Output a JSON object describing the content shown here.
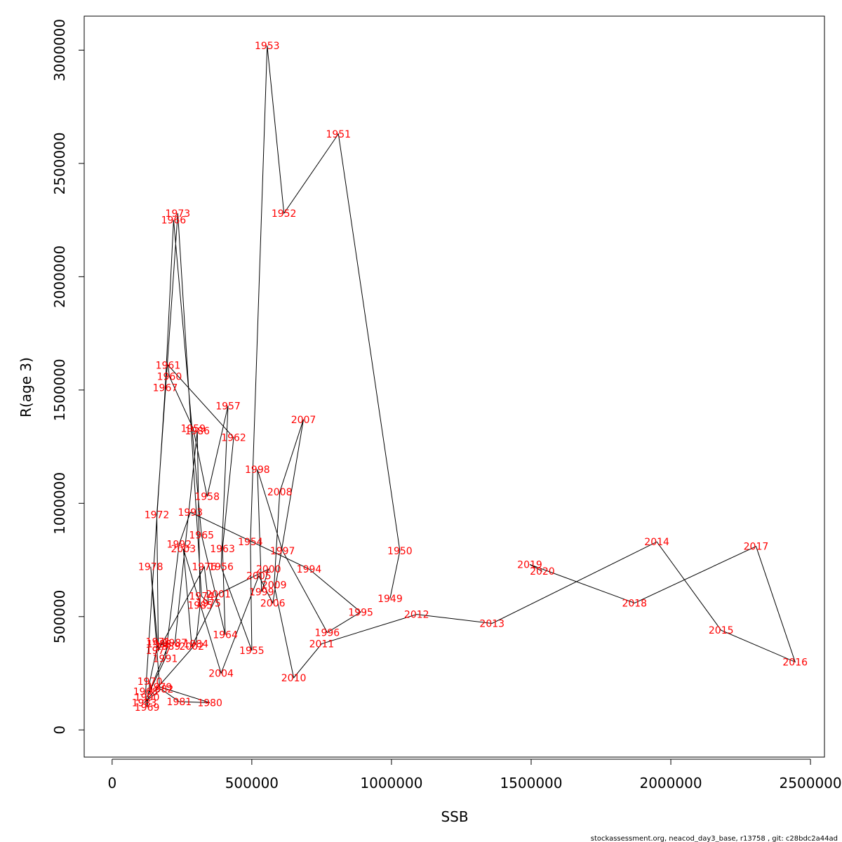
{
  "chart_data": {
    "type": "line",
    "title": "",
    "xlabel": "SSB",
    "ylabel": "R(age 3)",
    "xlim": [
      -100000,
      2550000
    ],
    "ylim": [
      -120000,
      3150000
    ],
    "x_ticks": [
      0,
      500000,
      1000000,
      1500000,
      2000000,
      2500000
    ],
    "x_tick_labels": [
      "0",
      "500000",
      "1000000",
      "1500000",
      "2000000",
      "2500000"
    ],
    "y_ticks": [
      0,
      500000,
      1000000,
      1500000,
      2000000,
      2500000,
      3000000
    ],
    "y_tick_labels": [
      "0",
      "500000",
      "1000000",
      "1500000",
      "2000000",
      "2500000",
      "3000000"
    ],
    "grid": false,
    "line_color": "#000000",
    "label_color": "#ff0000",
    "points": [
      {
        "year": "1949",
        "x": 995000,
        "y": 580000
      },
      {
        "year": "1950",
        "x": 1030000,
        "y": 790000
      },
      {
        "year": "1951",
        "x": 810000,
        "y": 2630000
      },
      {
        "year": "1952",
        "x": 615000,
        "y": 2280000
      },
      {
        "year": "1953",
        "x": 555000,
        "y": 3020000
      },
      {
        "year": "1954",
        "x": 495000,
        "y": 830000
      },
      {
        "year": "1955",
        "x": 500000,
        "y": 350000
      },
      {
        "year": "1956",
        "x": 390000,
        "y": 720000
      },
      {
        "year": "1957",
        "x": 415000,
        "y": 1430000
      },
      {
        "year": "1958",
        "x": 340000,
        "y": 1030000
      },
      {
        "year": "1959",
        "x": 290000,
        "y": 1330000
      },
      {
        "year": "1960",
        "x": 205000,
        "y": 1560000
      },
      {
        "year": "1961",
        "x": 200000,
        "y": 1610000
      },
      {
        "year": "1962",
        "x": 435000,
        "y": 1290000
      },
      {
        "year": "1963",
        "x": 395000,
        "y": 800000
      },
      {
        "year": "1964",
        "x": 405000,
        "y": 420000
      },
      {
        "year": "1965",
        "x": 320000,
        "y": 860000
      },
      {
        "year": "1966",
        "x": 220000,
        "y": 2250000
      },
      {
        "year": "1967",
        "x": 190000,
        "y": 1510000
      },
      {
        "year": "1968",
        "x": 120000,
        "y": 170000
      },
      {
        "year": "1969",
        "x": 125000,
        "y": 100000
      },
      {
        "year": "1970",
        "x": 135000,
        "y": 215000
      },
      {
        "year": "1971",
        "x": 165000,
        "y": 390000
      },
      {
        "year": "1972",
        "x": 160000,
        "y": 950000
      },
      {
        "year": "1973",
        "x": 235000,
        "y": 2280000
      },
      {
        "year": "1974",
        "x": 320000,
        "y": 590000
      },
      {
        "year": "1975",
        "x": 345000,
        "y": 560000
      },
      {
        "year": "1976",
        "x": 330000,
        "y": 720000
      },
      {
        "year": "1977",
        "x": 165000,
        "y": 350000
      },
      {
        "year": "1978",
        "x": 138000,
        "y": 720000
      },
      {
        "year": "1979",
        "x": 170000,
        "y": 190000
      },
      {
        "year": "1980",
        "x": 350000,
        "y": 120000
      },
      {
        "year": "1981",
        "x": 240000,
        "y": 125000
      },
      {
        "year": "1982",
        "x": 175000,
        "y": 180000
      },
      {
        "year": "1983",
        "x": 115000,
        "y": 120000
      },
      {
        "year": "1984",
        "x": 300000,
        "y": 380000
      },
      {
        "year": "1985",
        "x": 315000,
        "y": 550000
      },
      {
        "year": "1986",
        "x": 305000,
        "y": 1320000
      },
      {
        "year": "1987",
        "x": 225000,
        "y": 385000
      },
      {
        "year": "1988",
        "x": 168000,
        "y": 380000
      },
      {
        "year": "1989",
        "x": 200000,
        "y": 370000
      },
      {
        "year": "1990",
        "x": 125000,
        "y": 145000
      },
      {
        "year": "1991",
        "x": 190000,
        "y": 315000
      },
      {
        "year": "1992",
        "x": 240000,
        "y": 820000
      },
      {
        "year": "1993",
        "x": 280000,
        "y": 960000
      },
      {
        "year": "1994",
        "x": 705000,
        "y": 710000
      },
      {
        "year": "1995",
        "x": 890000,
        "y": 520000
      },
      {
        "year": "1996",
        "x": 770000,
        "y": 430000
      },
      {
        "year": "1997",
        "x": 610000,
        "y": 790000
      },
      {
        "year": "1998",
        "x": 520000,
        "y": 1150000
      },
      {
        "year": "1999",
        "x": 535000,
        "y": 610000
      },
      {
        "year": "2000",
        "x": 560000,
        "y": 710000
      },
      {
        "year": "2001",
        "x": 380000,
        "y": 600000
      },
      {
        "year": "2002",
        "x": 285000,
        "y": 370000
      },
      {
        "year": "2003",
        "x": 255000,
        "y": 800000
      },
      {
        "year": "2004",
        "x": 390000,
        "y": 250000
      },
      {
        "year": "2005",
        "x": 525000,
        "y": 680000
      },
      {
        "year": "2006",
        "x": 575000,
        "y": 560000
      },
      {
        "year": "2007",
        "x": 685000,
        "y": 1370000
      },
      {
        "year": "2008",
        "x": 600000,
        "y": 1050000
      },
      {
        "year": "2009",
        "x": 580000,
        "y": 640000
      },
      {
        "year": "2010",
        "x": 650000,
        "y": 230000
      },
      {
        "year": "2011",
        "x": 750000,
        "y": 380000
      },
      {
        "year": "2012",
        "x": 1090000,
        "y": 510000
      },
      {
        "year": "2013",
        "x": 1360000,
        "y": 470000
      },
      {
        "year": "2014",
        "x": 1950000,
        "y": 830000
      },
      {
        "year": "2015",
        "x": 2180000,
        "y": 440000
      },
      {
        "year": "2016",
        "x": 2445000,
        "y": 300000
      },
      {
        "year": "2017",
        "x": 2305000,
        "y": 810000
      },
      {
        "year": "2018",
        "x": 1870000,
        "y": 560000
      },
      {
        "year": "2019",
        "x": 1495000,
        "y": 730000
      },
      {
        "year": "2020",
        "x": 1540000,
        "y": 700000
      }
    ]
  },
  "footer": "stockassessment.org, neacod_day3_base, r13758 , git: c28bdc2a44ad"
}
